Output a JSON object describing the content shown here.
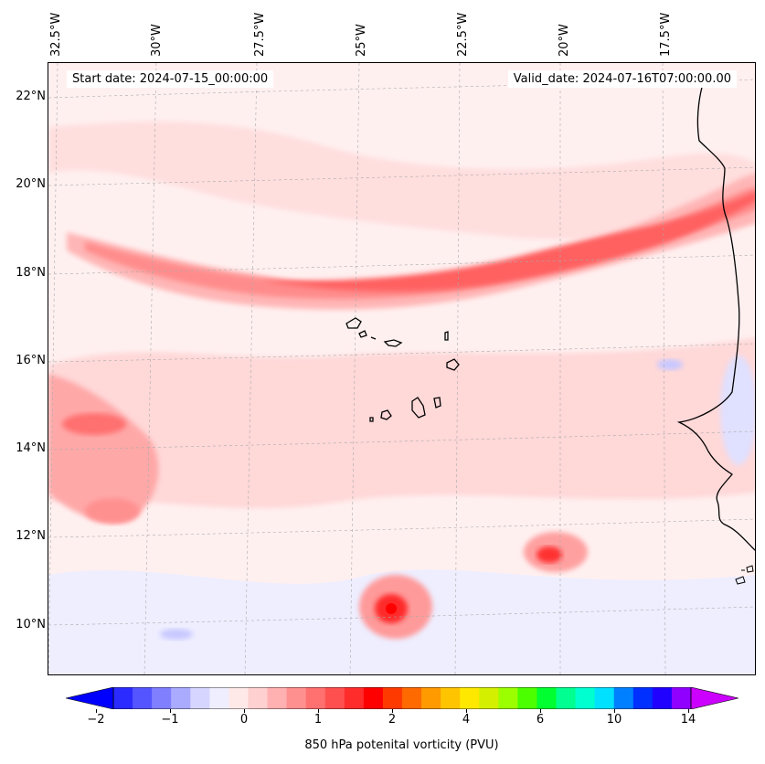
{
  "map": {
    "start_date": "Start date: 2024-07-15_00:00:00",
    "valid_date": "Valid_date: 2024-07-16T07:00:00.00",
    "longitude_labels": [
      "32.5°W",
      "30°W",
      "27.5°W",
      "25°W",
      "22.5°W",
      "20°W",
      "17.5°W"
    ],
    "latitude_labels": [
      "22°N",
      "20°N",
      "18°N",
      "16°N",
      "14°N",
      "12°N",
      "10°N"
    ]
  },
  "colorbar": {
    "label": "850 hPa potenital vorticity (PVU)",
    "ticks": [
      "−2",
      "−1",
      "0",
      "1",
      "2",
      "4",
      "6",
      "10",
      "14"
    ],
    "colors": [
      "#0000ff",
      "#2b2bff",
      "#5555ff",
      "#8080ff",
      "#aaaaff",
      "#d5d5ff",
      "#eeeeff",
      "#ffe8e8",
      "#ffd0d0",
      "#ffb0b0",
      "#ff9090",
      "#ff7070",
      "#ff5050",
      "#ff2c2c",
      "#ff0000",
      "#ff3a00",
      "#ff6a00",
      "#ff9a00",
      "#ffc400",
      "#ffe800",
      "#d4f000",
      "#9cff00",
      "#4cff00",
      "#00ff30",
      "#00ff90",
      "#00ffd0",
      "#00e0ff",
      "#0080ff",
      "#0030ff",
      "#2000ff",
      "#9000ff",
      "#cc00ff"
    ]
  }
}
